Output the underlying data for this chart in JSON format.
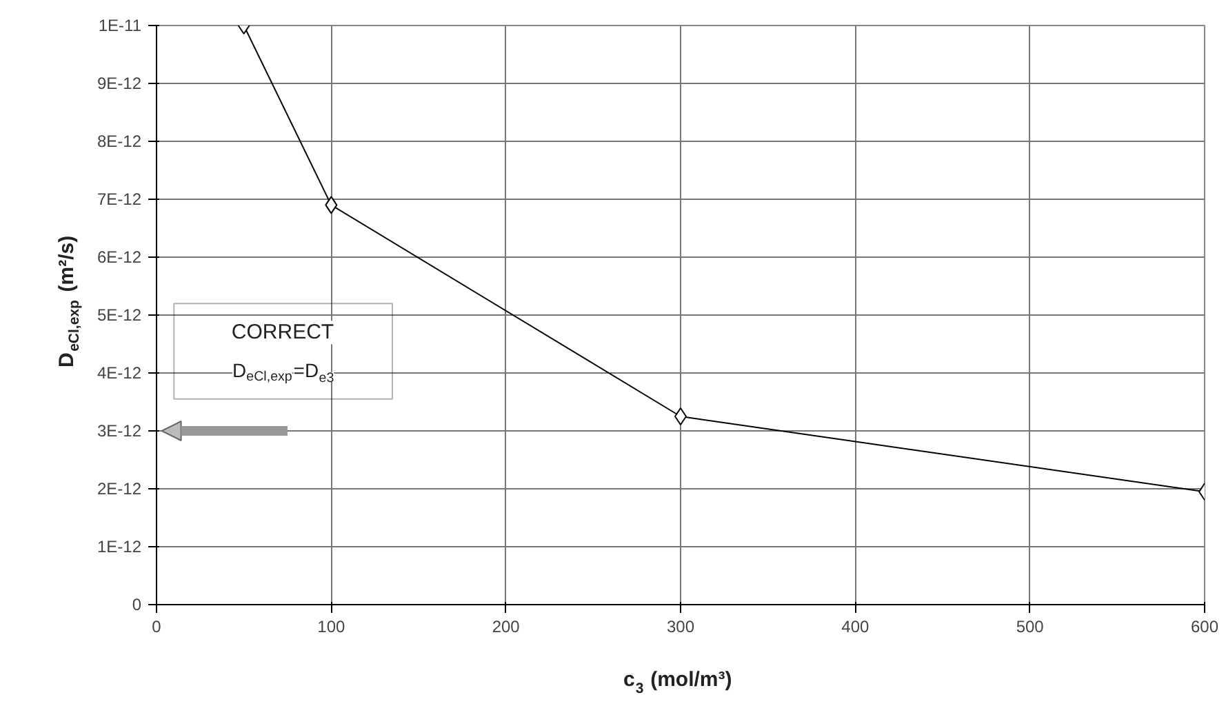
{
  "chart_data": {
    "type": "line",
    "xlabel": "c$_{3}$ (mol/m³)",
    "ylabel": "D$_{eCl,exp}$ (m²/s)",
    "x": [
      50,
      100,
      300,
      600
    ],
    "series": [
      {
        "color": "#000000",
        "values": [
          1e-11,
          6.9e-12,
          3.25e-12,
          1.95e-12
        ]
      }
    ],
    "xlim": [
      0,
      600
    ],
    "xticks": [
      0,
      100,
      200,
      300,
      400,
      500,
      600
    ],
    "ylim": [
      0,
      1e-11
    ],
    "yticks": [
      0,
      {
        "value": 1e-12,
        "label": "1E-12"
      },
      {
        "value": 2e-12,
        "label": "2E-12"
      },
      {
        "value": 3e-12,
        "label": "3E-12"
      },
      {
        "value": 4e-12,
        "label": "4E-12"
      },
      {
        "value": 5e-12,
        "label": "5E-12"
      },
      {
        "value": 6e-12,
        "label": "6E-12"
      },
      {
        "value": 7e-12,
        "label": "7E-12"
      },
      {
        "value": 8e-12,
        "label": "8E-12"
      },
      {
        "value": 9e-12,
        "label": "9E-12"
      },
      {
        "value": 1e-11,
        "label": "1E-11"
      }
    ],
    "annotations": [
      "CORRECT",
      "D$_{eCl,exp}$=D$_{e3}$"
    ],
    "grid": true,
    "marker": "diamond",
    "line_style": "solid"
  }
}
